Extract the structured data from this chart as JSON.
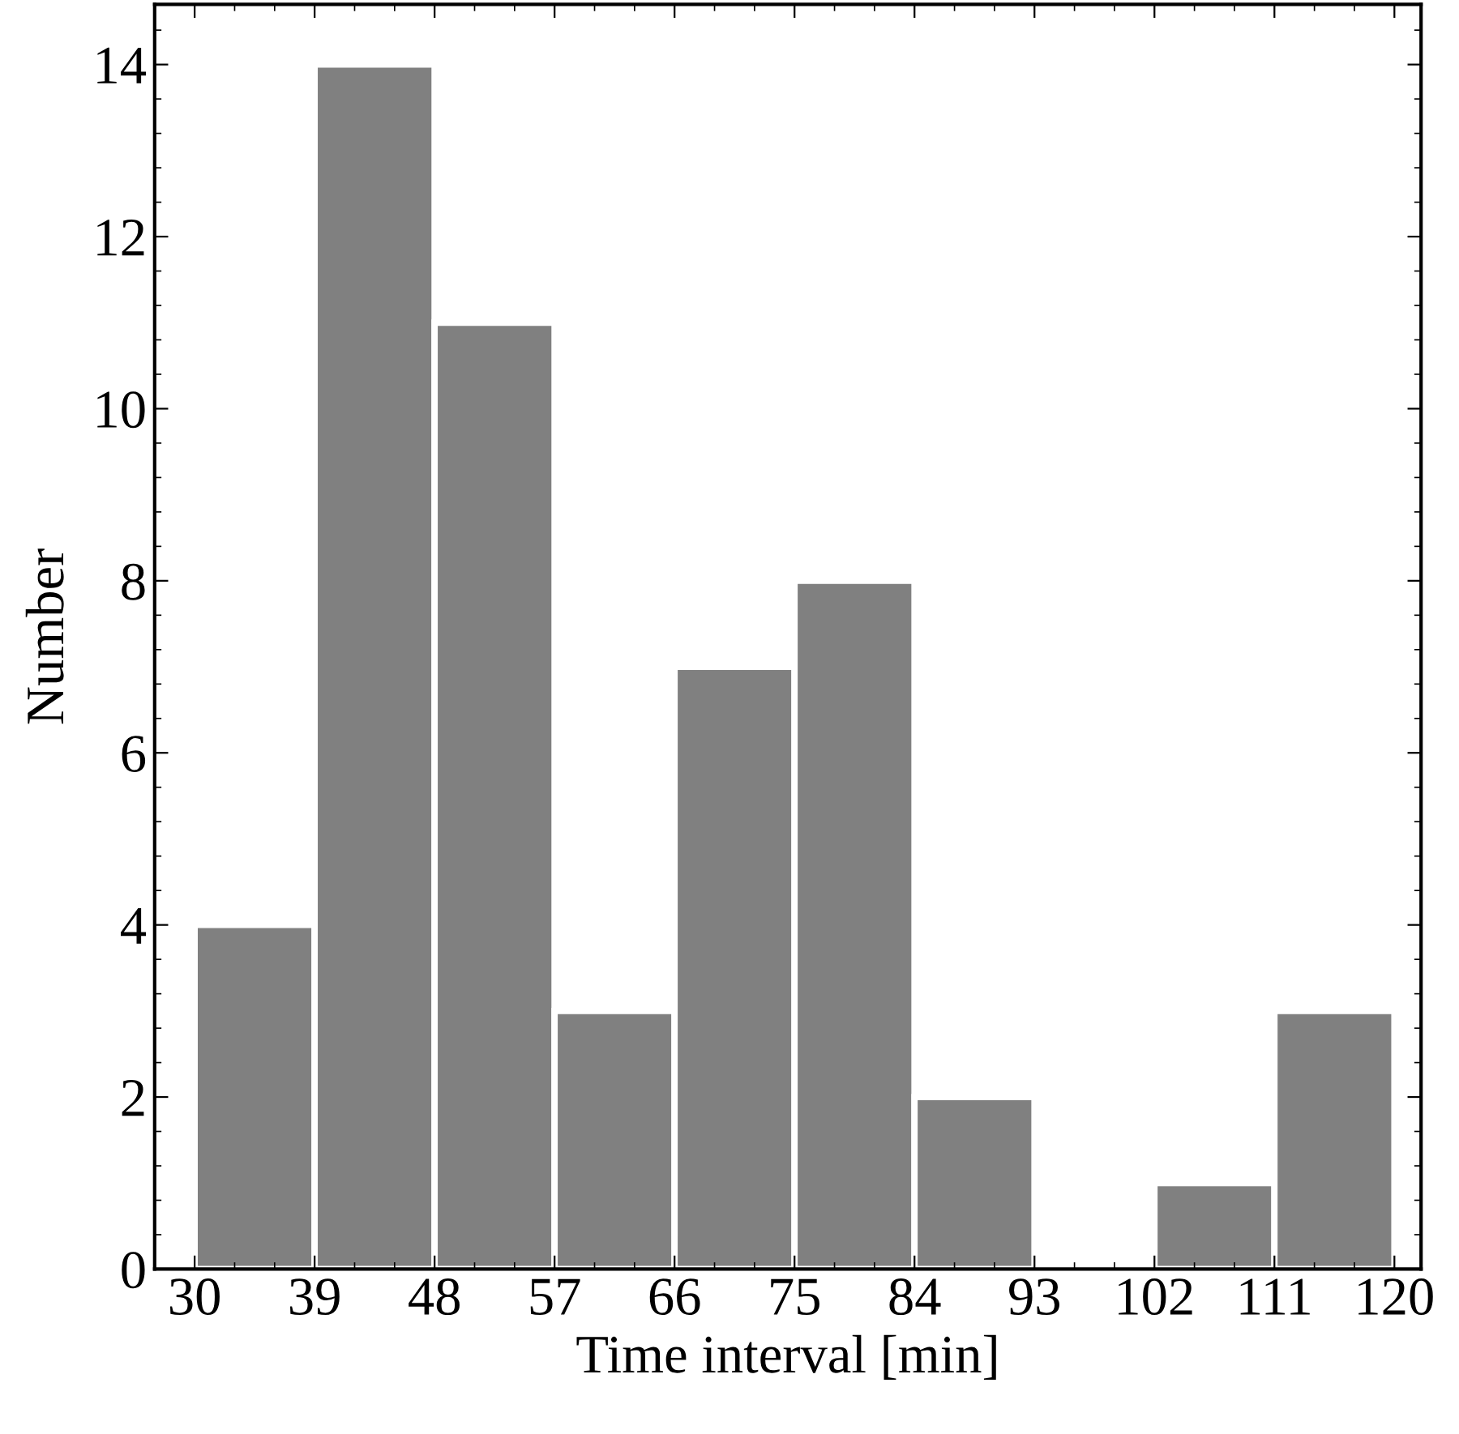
{
  "chart_data": {
    "type": "histogram",
    "xlabel": "Time interval [min]",
    "ylabel": "Number",
    "bins": [
      30,
      39,
      48,
      57,
      66,
      75,
      84,
      93,
      102,
      111,
      120
    ],
    "values": [
      4,
      14,
      11,
      3,
      7,
      8,
      2,
      0,
      1,
      3
    ],
    "color": "#808080",
    "xlim": [
      27,
      122
    ],
    "ylim": [
      0,
      14.7
    ],
    "xticks": [
      30,
      39,
      48,
      57,
      66,
      75,
      84,
      93,
      102,
      111,
      120
    ],
    "yticks": [
      0,
      2,
      4,
      6,
      8,
      10,
      12,
      14
    ],
    "grid": false,
    "legend": false
  }
}
